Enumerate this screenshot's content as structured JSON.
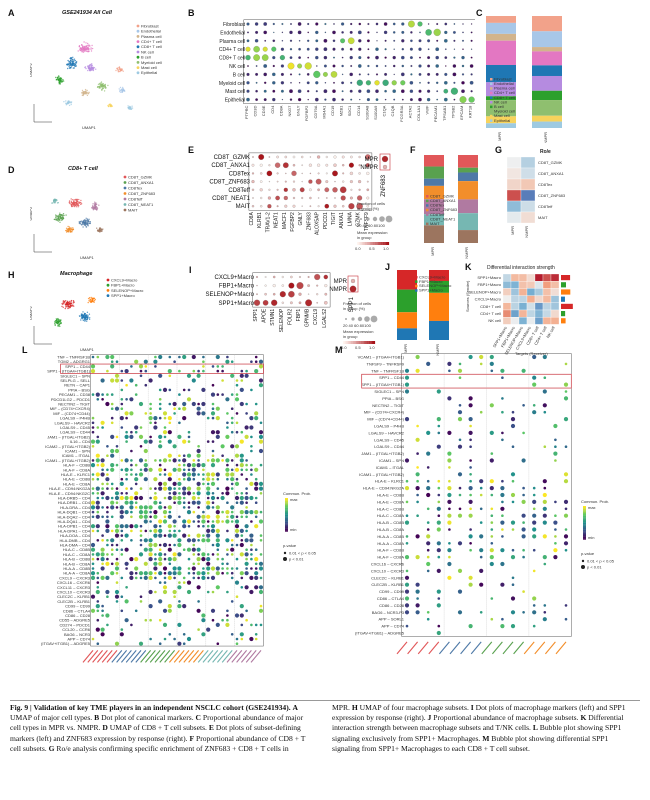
{
  "panels": {
    "A": {
      "letter": "A",
      "title": "GSE241934 All Cell",
      "xlabel": "UMAP1",
      "ylabel": "UMAP2",
      "legend": [
        "Fibroblast",
        "Endothelial",
        "Plasma cell",
        "CD4+ T cell",
        "CD8+ T cell",
        "NK cell",
        "B cell",
        "Myeloid cell",
        "Mast cell",
        "Epithelial"
      ]
    },
    "B": {
      "letter": "B",
      "rows": [
        "Fibroblast",
        "Endothelial",
        "Plasma cell",
        "CD4+ T cell",
        "CD8+ T cell",
        "NK cell",
        "B cell",
        "Myeloid cell",
        "Mast cell",
        "Epithelial"
      ],
      "cols": [
        "PTPRC",
        "CD3D",
        "CD3E",
        "CD4",
        "CD8A",
        "NKG7",
        "GNLY",
        "FGFBP2",
        "CD79A",
        "MS4A1",
        "CD19",
        "MZB1",
        "SDC1",
        "CD14",
        "S100A8",
        "S100A9",
        "C1QA",
        "C1QB",
        "FCGR3A",
        "ACTA2",
        "COL1A1",
        "VWF",
        "PECAM1",
        "TPSAB1",
        "TPSB2",
        "EPCAM",
        "KRT18"
      ]
    },
    "C": {
      "letter": "C",
      "xticks": [
        "MPR",
        "NMPR"
      ],
      "legend": [
        "Fibroblast",
        "Endothelial",
        "Plasma cell",
        "CD4+ T cell",
        "CD8+ T cell",
        "NK cell",
        "B cell",
        "Myeloid cell",
        "Mast cell",
        "Epithelial"
      ]
    },
    "D": {
      "letter": "D",
      "title": "CD8+ T cell",
      "xlabel": "UMAP1",
      "ylabel": "UMAP2",
      "legend": [
        "CD8T_GZMK",
        "CD8T_ANXA1",
        "CD8Tex",
        "CD8T_ZNF683",
        "CD8Teff",
        "CD8T_NEAT1",
        "MAIT"
      ]
    },
    "E": {
      "letter": "E",
      "rows": [
        "CD8T_GZMK",
        "CD8T_ANXA1",
        "CD8Tex",
        "CD8T_ZNF683",
        "CD8Teff",
        "CD8T_NEAT1",
        "MAIT"
      ],
      "cols": [
        "CD8A",
        "KLRB1",
        "TRAV1-2",
        "NEAT1",
        "MACF1",
        "FGFBP2",
        "GNLY",
        "ZNF683",
        "ALOX5AP",
        "PDCD1",
        "TIGIT",
        "ANXA1",
        "LMNA",
        "GZMK",
        "TNFSF9"
      ],
      "side_rows": [
        "MPR",
        "NMPR"
      ],
      "side_col": "ZNF683",
      "legend_title": "Fraction of cells\nin group (%)",
      "legend_ticks": "20 40 60 80100",
      "legend2_title": "Mean expression\nin group",
      "legend2_ticks": [
        "0.0",
        "0.5",
        "1.0"
      ]
    },
    "F": {
      "letter": "F",
      "xticks": [
        "MPR",
        "NMPR"
      ],
      "legend": [
        "CD8T_GZMK",
        "CD8T_ANXA1",
        "CD8Tex",
        "CD8T_ZNF683",
        "CD8Teff",
        "CD8T_NEAT1",
        "MAIT"
      ]
    },
    "G": {
      "letter": "G",
      "title": "Ro/e",
      "rows": [
        "CD8T_GZMK",
        "CD8T_ANXA1",
        "CD8Tex",
        "CD8T_ZNF683",
        "CD8Teff",
        "MAIT"
      ],
      "cols": [
        "MPR",
        "NMPR"
      ]
    },
    "H": {
      "letter": "H",
      "title": "Macrophage",
      "xlabel": "UMAP1",
      "ylabel": "UMAP2",
      "legend": [
        "CXCL9+Macro",
        "FBP1+Macro",
        "SELENOP+Macro",
        "SPP1+Macro"
      ]
    },
    "I": {
      "letter": "I",
      "rows": [
        "CXCL9+Macro",
        "FBP1+Macro",
        "SELENOP+Macro",
        "SPP1+Macro"
      ],
      "cols": [
        "SPP1",
        "APOE",
        "STMN1",
        "SELENOP",
        "FOLR2",
        "FBP1",
        "GPNMB",
        "CXCL9",
        "LGALS2"
      ],
      "side_rows": [
        "MPR",
        "NMPR"
      ],
      "side_col": "SPP1",
      "legend_title": "Fraction of cells\nin group (%)",
      "legend_ticks": "20 40 60 80100",
      "legend2_title": "Mean expression\nin group",
      "legend2_ticks": [
        "0.0",
        "0.5",
        "1.0"
      ]
    },
    "J": {
      "letter": "J",
      "xticks": [
        "MPR",
        "NMPR"
      ],
      "legend": [
        "CXCL9+Macro",
        "FBP1+Macro",
        "SELENOP+Macro",
        "SPP1+Macro"
      ]
    },
    "K": {
      "letter": "K",
      "title": "Differential interaction strength",
      "rows": [
        "SPP1+Macro",
        "FBP1+Macro",
        "SELENOP+Macro",
        "CXCL9+Macro",
        "CD8+ T cell",
        "CD4+ T cell",
        "NK cell"
      ],
      "ylabel": "Sources (Sender)",
      "xlabel": "Targets (Receiver)"
    },
    "L": {
      "letter": "L",
      "rows": [
        "TNF – TNFRSF1B",
        "TGM2 – ADGRG1",
        "SPP1 – CD44",
        "SPP1 – (ITGA4+ITGB1)",
        "SIGLEC1 – SPN",
        "SELPLG – SELL",
        "RETN – CAP1",
        "PPIA – BSG",
        "PECAM1 – CD38",
        "PDCD1LG2 – PDCD1",
        "NECTIN2 – TIGIT",
        "MIF – (CD74+CXCR4)",
        "MIF – (CD74+CD44)",
        "LGALS9 – P4HB",
        "LGALS9 – HAVCR2",
        "LGALS9 – CD45",
        "LGALS9 – CD44",
        "JAM1 – (ITGAL+ITGB2)",
        "IL16 – CD4",
        "ICAM2 – (ITGAL+ITGB2)",
        "ICAM1 – SPN",
        "ICAM1 – ITGAL",
        "ICAM1 – (ITGAL+ITGB2)",
        "HLA-F – CD8B",
        "HLA-F – CD8A",
        "HLA-E – KLRC1",
        "HLA-E – CD8B",
        "HLA-E – CD8A",
        "HLA-E – CD94:NKG2A",
        "HLA-E – CD94:NKG2C",
        "HLA-DRB5 – CD4",
        "HLA-DRB1 – CD4",
        "HLA-DRA – CD4",
        "HLA-DQB1 – CD4",
        "HLA-DQA2 – CD4",
        "HLA-DQA1 – CD4",
        "HLA-DPB1 – CD4",
        "HLA-DPA1 – CD4",
        "HLA-DOA – CD4",
        "HLA-DMB – CD4",
        "HLA-DMA – CD4",
        "HLA-C – CD8B",
        "HLA-C – CD8A",
        "HLA-B – CD8B",
        "HLA-B – CD8A",
        "HLA-A – CD8B",
        "HLA-A – CD8A",
        "CXCL9 – CXCR3",
        "CXCL16 – CXCR6",
        "CXCL11 – CXCR3",
        "CXCL10 – CXCR3",
        "CLEC2C – KLRB1",
        "CLEC2B – KLRB1",
        "CD99 – CD99",
        "CD86 – CTLA4",
        "CD86 – CD28",
        "CD55 – ADGRE5",
        "CD274 – PDCD1",
        "CCL20 – CCR6",
        "BAG6 – NCR3",
        "APP – CD74",
        "(ITGAV+ITGB1) – ADGRE5"
      ],
      "legend_title": "Commun. Prob.",
      "legend_max": "max",
      "legend_min": "min",
      "p_title": "p-value",
      "p_items": [
        "0.01 < p < 0.05",
        "p < 0.01"
      ]
    },
    "M": {
      "letter": "M",
      "rows": [
        "VCAM1 – (ITGA4+ITGB1)",
        "TNFSF9 – TNFRSF9",
        "TNF – TNFRSF1B",
        "SPP1 – CD44",
        "SPP1 – (ITGA4+ITGB1)",
        "SIGLEC1 – SPN",
        "PPIA – BSG",
        "NECTIN2 – TIGIT",
        "MIF – (CD74+CXCR4)",
        "MIF – (CD74+CD44)",
        "LGALS9 – P4HB",
        "LGALS9 – HAVCR2",
        "LGALS9 – CD45",
        "LGALS9 – CD44",
        "JAM1 – (ITGAL+ITGB2)",
        "ICAM1 – SPN",
        "ICAM1 – ITGAL",
        "ICAM1 – (ITGAL+ITGB2)",
        "HLA-E – KLRC1",
        "HLA-E – CD94:NKG2A",
        "HLA-E – CD8B",
        "HLA-E – CD8A",
        "HLA-C – CD8B",
        "HLA-C – CD8A",
        "HLA-B – CD8B",
        "HLA-B – CD8A",
        "HLA-A – CD8B",
        "HLA-A – CD8A",
        "HLA-F – CD8B",
        "HLA-F – CD8A",
        "CXCL16 – CXCR6",
        "CXCL10 – CXCR3",
        "CLEC2C – KLRB1",
        "CLEC2B – KLRB1",
        "CD99 – CD99",
        "CD86 – CTLA4",
        "CD86 – CD28",
        "BAG6 – NCR3-P3",
        "APP – SORL1",
        "APP – CD74",
        "(ITGAV+ITGB1) – ADGRE5"
      ],
      "legend_title": "Commun. Prob.",
      "legend_max": "max",
      "legend_min": "min",
      "p_title": "p-value",
      "p_items": [
        "0.01 < p < 0.05",
        "p < 0.01"
      ]
    }
  },
  "caption": {
    "fig": "Fig. 9 | Validation of key TME players in an independent NSCLC cohort (GSE241934).",
    "left": [
      {
        "b": "A",
        "t": " UMAP of major cell types. "
      },
      {
        "b": "B",
        "t": " Dot plot of canonical markers. "
      },
      {
        "b": "C",
        "t": " Proportional abundance of major cell types in MPR vs. NMPR. "
      },
      {
        "b": "D",
        "t": " UMAP of CD8 + T cell subsets. "
      },
      {
        "b": "E",
        "t": " Dot plots of subset-defining markers (left) and ZNF683 expression by response (right). "
      },
      {
        "b": "F",
        "t": " Proportional abundance of CD8 + T cell subsets. "
      },
      {
        "b": "G",
        "t": " Ro/e analysis confirming specific enrichment of ZNF683 + CD8 + T cells in"
      }
    ],
    "right": [
      {
        "b": "",
        "t": "MPR. "
      },
      {
        "b": "H",
        "t": " UMAP of four macrophage subsets. "
      },
      {
        "b": "I",
        "t": " Dot plots of macrophage markers (left) and SPP1 expression by response (right). "
      },
      {
        "b": "J",
        "t": " Proportional abundance of macrophage subsets. "
      },
      {
        "b": "K",
        "t": " Differential interaction strength between macrophage subsets and T/NK cells. "
      },
      {
        "b": "L",
        "t": " Bubble plot showing SPP1 signaling exclusively from SPP1+ Macrophages. "
      },
      {
        "b": "M",
        "t": " Bubble plot showing differential SPP1 signaling from SPP1+ Macrophages to each CD8 + T cell subset."
      }
    ]
  },
  "colors": {
    "accent": "#c8323c",
    "cool": "#3b5ba9",
    "warm": "#d73027"
  }
}
